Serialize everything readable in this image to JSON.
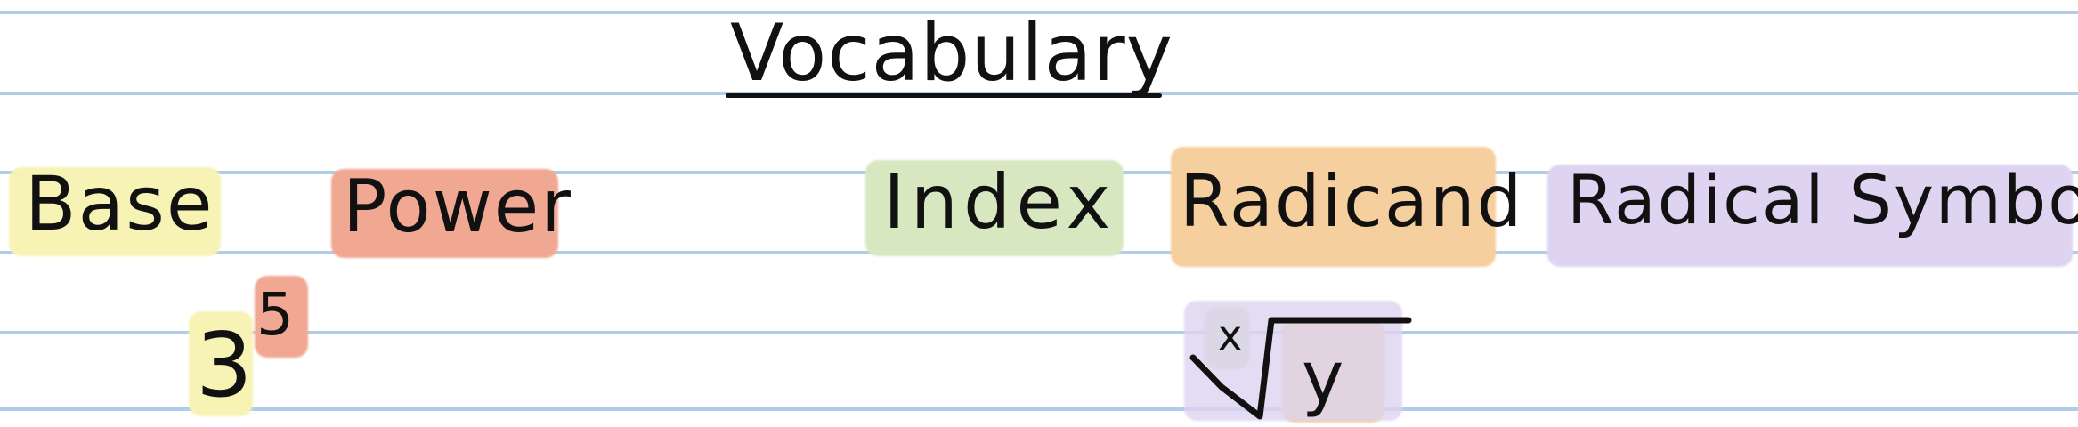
{
  "title": "Vocabulary",
  "terms": {
    "base": "Base",
    "power": "Power",
    "index": "Index",
    "radicand": "Radicand",
    "radical_symbol": "Radical Symbol"
  },
  "examples": {
    "exponent_base": "3",
    "exponent_power": "5",
    "radical_index": "x",
    "radical_radicand": "y"
  },
  "colors": {
    "rule": "#a9c6e6",
    "base_highlight": "#f7f3b5",
    "power_highlight": "#f1a892",
    "index_highlight": "#d7e8c0",
    "radicand_highlight": "#f6cf9e",
    "radical_symbol_highlight": "#ded4f1"
  }
}
